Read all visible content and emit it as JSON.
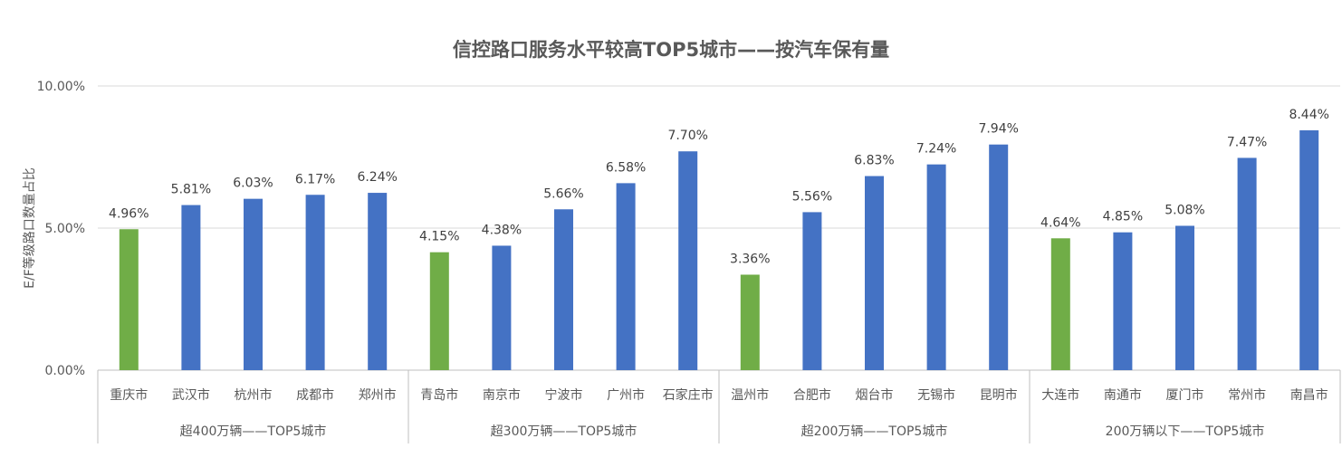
{
  "chart_data": {
    "type": "bar",
    "title": "信控路口服务水平较高TOP5城市——按汽车保有量",
    "ylabel": "E/F等级路口数量占比",
    "xlabel": "",
    "ylim": [
      0,
      10
    ],
    "yticks": [
      "0.00%",
      "5.00%",
      "10.00%"
    ],
    "ytick_values": [
      0,
      5,
      10
    ],
    "grid": true,
    "colors": {
      "highlight": "#70ad47",
      "default": "#4472c4"
    },
    "groups": [
      {
        "label": "超400万辆——TOP5城市",
        "categories": [
          "重庆市",
          "武汉市",
          "杭州市",
          "成都市",
          "郑州市"
        ],
        "values": [
          4.96,
          5.81,
          6.03,
          6.17,
          6.24
        ],
        "labels": [
          "4.96%",
          "5.81%",
          "6.03%",
          "6.17%",
          "6.24%"
        ]
      },
      {
        "label": "超300万辆——TOP5城市",
        "categories": [
          "青岛市",
          "南京市",
          "宁波市",
          "广州市",
          "石家庄市"
        ],
        "values": [
          4.15,
          4.38,
          5.66,
          6.58,
          7.7
        ],
        "labels": [
          "4.15%",
          "4.38%",
          "5.66%",
          "6.58%",
          "7.70%"
        ]
      },
      {
        "label": "超200万辆——TOP5城市",
        "categories": [
          "温州市",
          "合肥市",
          "烟台市",
          "无锡市",
          "昆明市"
        ],
        "values": [
          3.36,
          5.56,
          6.83,
          7.24,
          7.94
        ],
        "labels": [
          "3.36%",
          "5.56%",
          "6.83%",
          "7.24%",
          "7.94%"
        ]
      },
      {
        "label": "200万辆以下——TOP5城市",
        "categories": [
          "大连市",
          "南通市",
          "厦门市",
          "常州市",
          "南昌市"
        ],
        "values": [
          4.64,
          4.85,
          5.08,
          7.47,
          8.44
        ],
        "labels": [
          "4.64%",
          "4.85%",
          "5.08%",
          "7.47%",
          "8.44%"
        ]
      }
    ]
  }
}
